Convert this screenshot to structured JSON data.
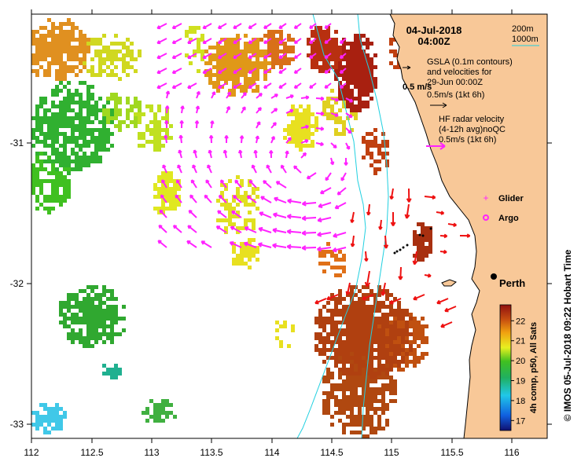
{
  "header": {
    "date": "04-Jul-2018",
    "time": "04:00Z"
  },
  "bathymetry_legend": {
    "line1": "200m",
    "line2": "1000m",
    "color": "#20d0e0"
  },
  "gsla_legend": {
    "line1": "GSLA (0.1m contours)",
    "line2": "and velocities for",
    "line3": "29-Jun 00:00Z",
    "line4": "0.5m/s (1kt 6h)",
    "scale_label": "0.5 m/s"
  },
  "hf_legend": {
    "line1": "HF radar velocity",
    "line2": "(4-12h avg)noQC",
    "line3": "0.5m/s (1kt 6h)",
    "arrow_color": "#ff22ff"
  },
  "markers": {
    "glider_label": "Glider",
    "argo_label": "Argo",
    "glider_color": "#ff22ff",
    "argo_color": "#ff22ff"
  },
  "city": {
    "label": "Perth"
  },
  "colorbar": {
    "title": "4h comp, p50, All Sats",
    "ticks": [
      "22",
      "21",
      "20",
      "19",
      "18",
      "17"
    ],
    "range": [
      16.5,
      22.8
    ]
  },
  "axes": {
    "x_ticks": [
      "112",
      "112.5",
      "113",
      "113.5",
      "114",
      "114.5",
      "115",
      "115.5",
      "116"
    ],
    "y_ticks": [
      "-31",
      "-32",
      "-33"
    ]
  },
  "credit": "©  IMOS 05-Jul-2018 09:22 Hobart Time",
  "colors": {
    "land": "#f8c898",
    "arrow_hf": "#ff22ff",
    "arrow_red": "#ee1111",
    "coast_line": "#000000"
  }
}
